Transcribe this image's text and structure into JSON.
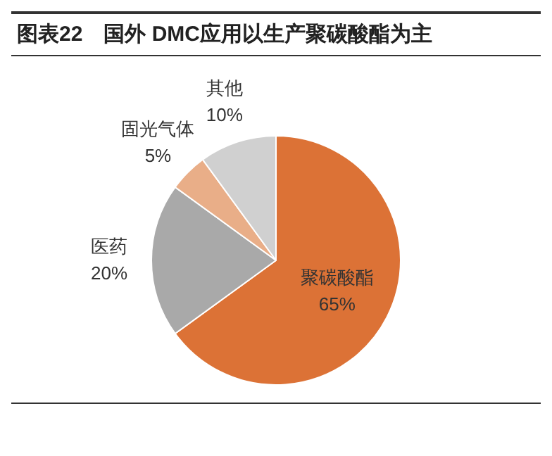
{
  "chart_data": {
    "type": "pie",
    "title": "图表22　国外 DMC应用以生产聚碳酸酯为主",
    "categories": [
      "聚碳酸酯",
      "医药",
      "固光气体",
      "其他"
    ],
    "values": [
      65,
      20,
      5,
      10
    ],
    "value_labels": [
      "65%",
      "20%",
      "5%",
      "10%"
    ],
    "colors": [
      "#dc7236",
      "#a9a9a9",
      "#e9ae88",
      "#d0d0d0"
    ],
    "legend": false
  }
}
